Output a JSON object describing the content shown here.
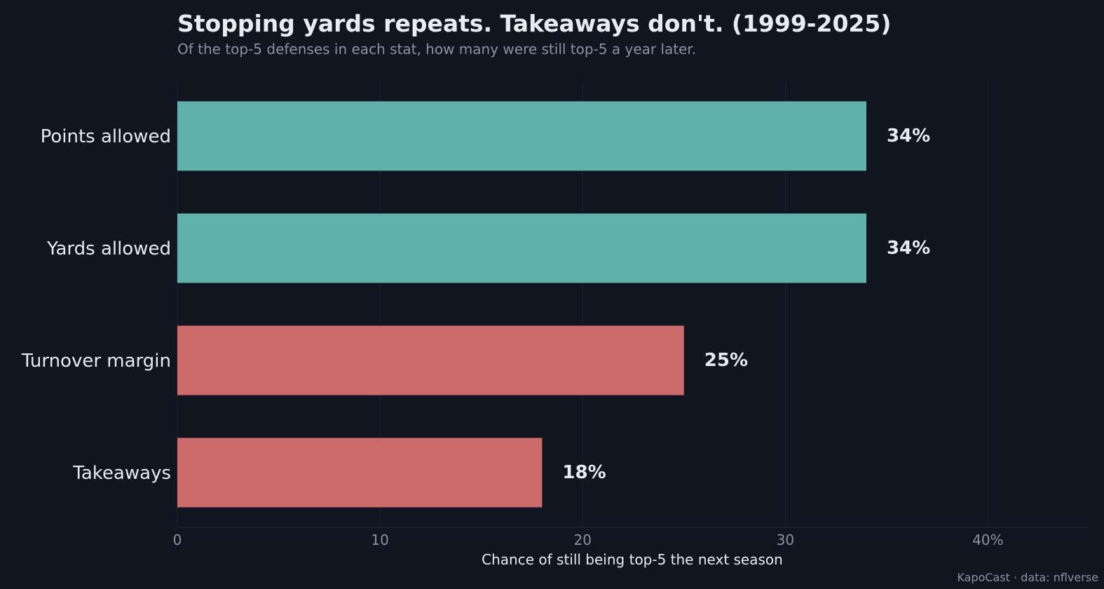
{
  "chart_data": {
    "type": "bar",
    "orientation": "horizontal",
    "title": "Stopping yards repeats. Takeaways don't. (1999-2025)",
    "subtitle": "Of the top-5 defenses in each stat, how many were still top-5 a year later.",
    "xlabel": "Chance of still being top-5 the next season",
    "ylabel": "",
    "xlim": [
      0,
      45
    ],
    "x_ticks": [
      0,
      10,
      20,
      30,
      40
    ],
    "x_tick_labels": [
      "0",
      "10",
      "20",
      "30",
      "40%"
    ],
    "grid": true,
    "categories": [
      "Points allowed",
      "Yards allowed",
      "Turnover margin",
      "Takeaways"
    ],
    "values": [
      34,
      34,
      25,
      18
    ],
    "data_labels": [
      "34%",
      "34%",
      "25%",
      "18%"
    ],
    "bar_colors": [
      "#60b1aa",
      "#60b1aa",
      "#cd6b6b",
      "#cd6b6b"
    ]
  },
  "credit": "KapoCast · data: nflverse",
  "colors": {
    "background": "#10151f",
    "text": "#e8ebf0",
    "muted": "#8a93a0",
    "grid": "#1a2130"
  }
}
